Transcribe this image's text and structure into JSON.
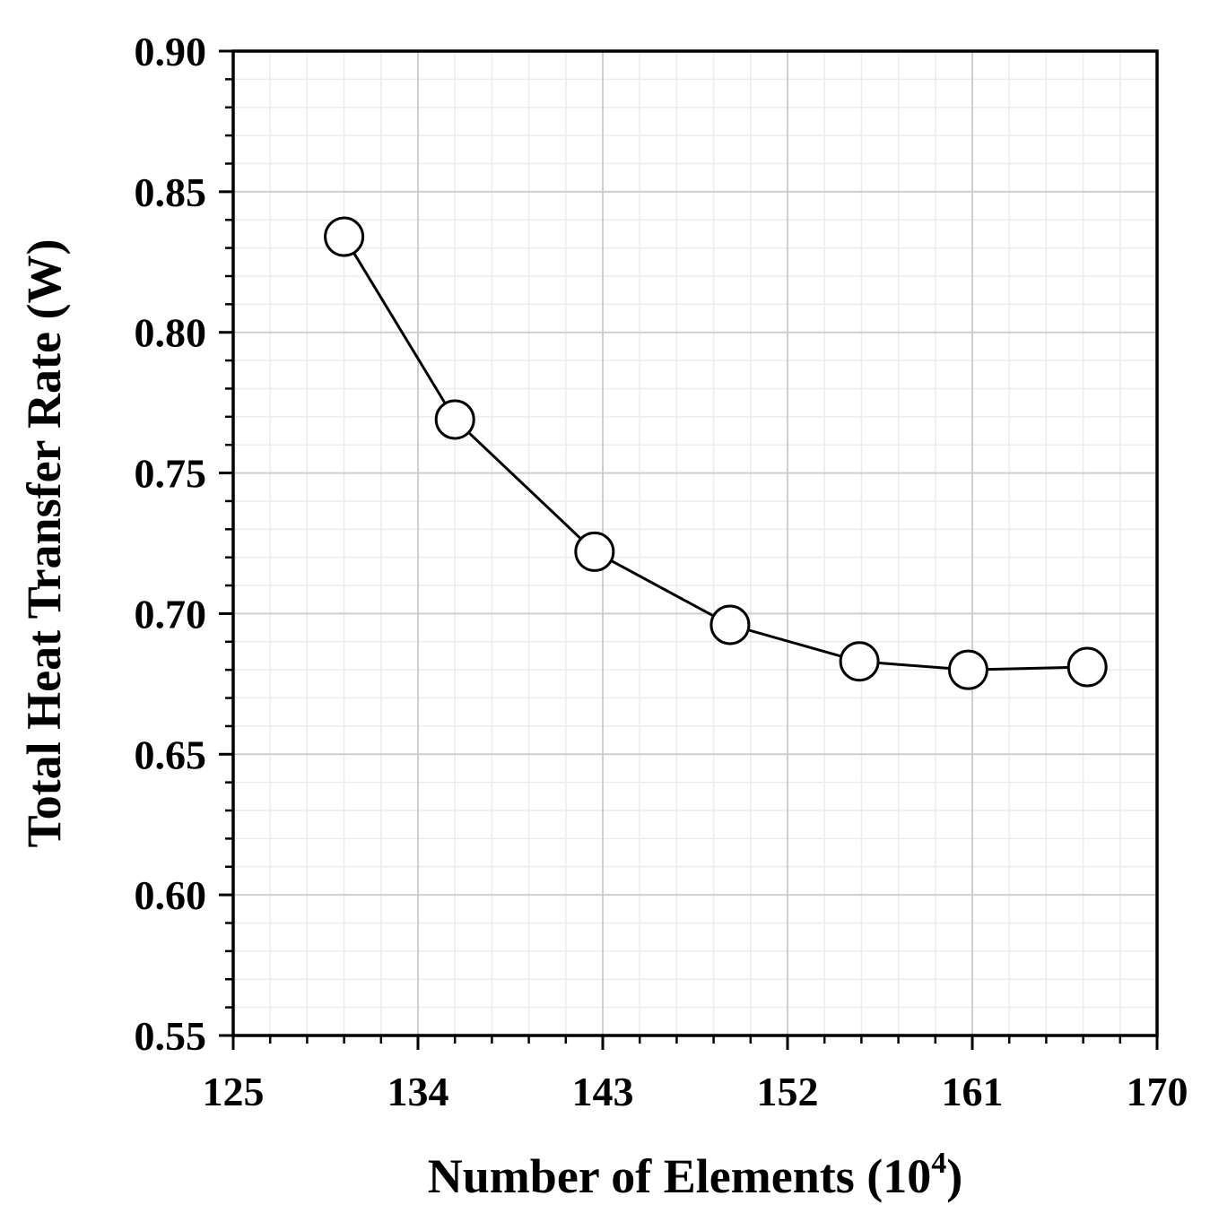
{
  "chart_data": {
    "type": "line",
    "xlabel": "Number of Elements (10",
    "xlabel_sup": "4",
    "xlabel_close": ")",
    "ylabel": "Total Heat Transfer Rate (W)",
    "xlim": [
      125,
      170
    ],
    "ylim": [
      0.55,
      0.9
    ],
    "x_ticks": [
      125,
      134,
      143,
      152,
      161,
      170
    ],
    "y_ticks": [
      0.55,
      0.6,
      0.65,
      0.7,
      0.75,
      0.8,
      0.85,
      0.9
    ],
    "x_tick_labels": [
      "125",
      "134",
      "143",
      "152",
      "161",
      "170"
    ],
    "y_tick_labels": [
      "0.55",
      "0.60",
      "0.65",
      "0.70",
      "0.75",
      "0.80",
      "0.85",
      "0.90"
    ],
    "grid": true,
    "series": [
      {
        "marker": "open-circle",
        "color": "#000000",
        "x": [
          130.4,
          135.8,
          142.6,
          149.2,
          155.5,
          160.8,
          166.6
        ],
        "y": [
          0.834,
          0.769,
          0.722,
          0.696,
          0.683,
          0.68,
          0.681
        ]
      }
    ]
  }
}
